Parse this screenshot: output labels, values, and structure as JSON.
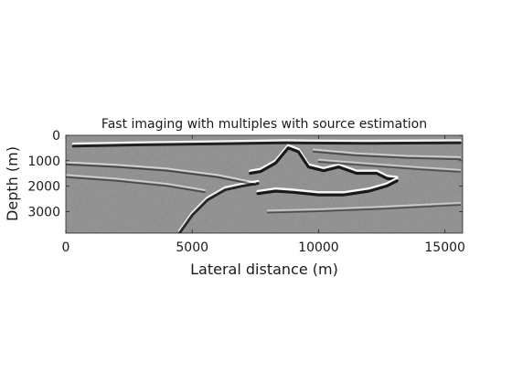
{
  "chart_data": {
    "type": "heatmap",
    "title": "Fast imaging with multiples with source estimation",
    "xlabel": "Lateral distance (m)",
    "ylabel": "Depth (m)",
    "xlim": [
      0,
      15700
    ],
    "ylim": [
      3850,
      0
    ],
    "xticks": [
      0,
      5000,
      10000,
      15000
    ],
    "yticks": [
      0,
      1000,
      2000,
      3000
    ],
    "colormap": "gray",
    "grid": false,
    "reflectors": [
      {
        "label": "top-reflector",
        "x": [
          300,
          3000,
          6000,
          8700,
          9400,
          12000,
          15600
        ],
        "y": [
          380,
          330,
          290,
          250,
          260,
          270,
          250
        ],
        "strength": 0.9
      },
      {
        "label": "salt-body-top",
        "x": [
          7300,
          7700,
          8300,
          8800,
          9200,
          9600,
          10200,
          10800,
          11500,
          12300,
          12700,
          13100
        ],
        "y": [
          1450,
          1380,
          1050,
          450,
          600,
          1200,
          1350,
          1200,
          1450,
          1450,
          1650,
          1700
        ],
        "strength": 1.0
      },
      {
        "label": "salt-body-base",
        "x": [
          7600,
          8300,
          9000,
          10000,
          11000,
          12000,
          12700,
          13100
        ],
        "y": [
          2250,
          2150,
          2200,
          2300,
          2300,
          2150,
          1950,
          1750
        ],
        "strength": 1.0
      },
      {
        "label": "dipping-reflector",
        "x": [
          4500,
          5000,
          5600,
          6300,
          7000,
          7600
        ],
        "y": [
          3800,
          3100,
          2500,
          2100,
          1950,
          1850
        ],
        "strength": 0.85
      },
      {
        "label": "sediment-layer-1",
        "x": [
          0,
          2000,
          4000,
          6000,
          7500
        ],
        "y": [
          1100,
          1200,
          1350,
          1600,
          1900
        ],
        "strength": 0.4
      },
      {
        "label": "sediment-layer-2",
        "x": [
          0,
          2000,
          4000,
          5500
        ],
        "y": [
          1600,
          1750,
          1950,
          2200
        ],
        "strength": 0.35
      },
      {
        "label": "sediment-layer-3",
        "x": [
          9800,
          11500,
          13500,
          15600
        ],
        "y": [
          600,
          750,
          850,
          900
        ],
        "strength": 0.35
      },
      {
        "label": "sediment-layer-4",
        "x": [
          10000,
          12000,
          14000,
          15600
        ],
        "y": [
          1000,
          1150,
          1300,
          1400
        ],
        "strength": 0.3
      },
      {
        "label": "deep-layer",
        "x": [
          8000,
          10000,
          12500,
          15600
        ],
        "y": [
          3000,
          2950,
          2850,
          2700
        ],
        "strength": 0.3
      }
    ]
  }
}
